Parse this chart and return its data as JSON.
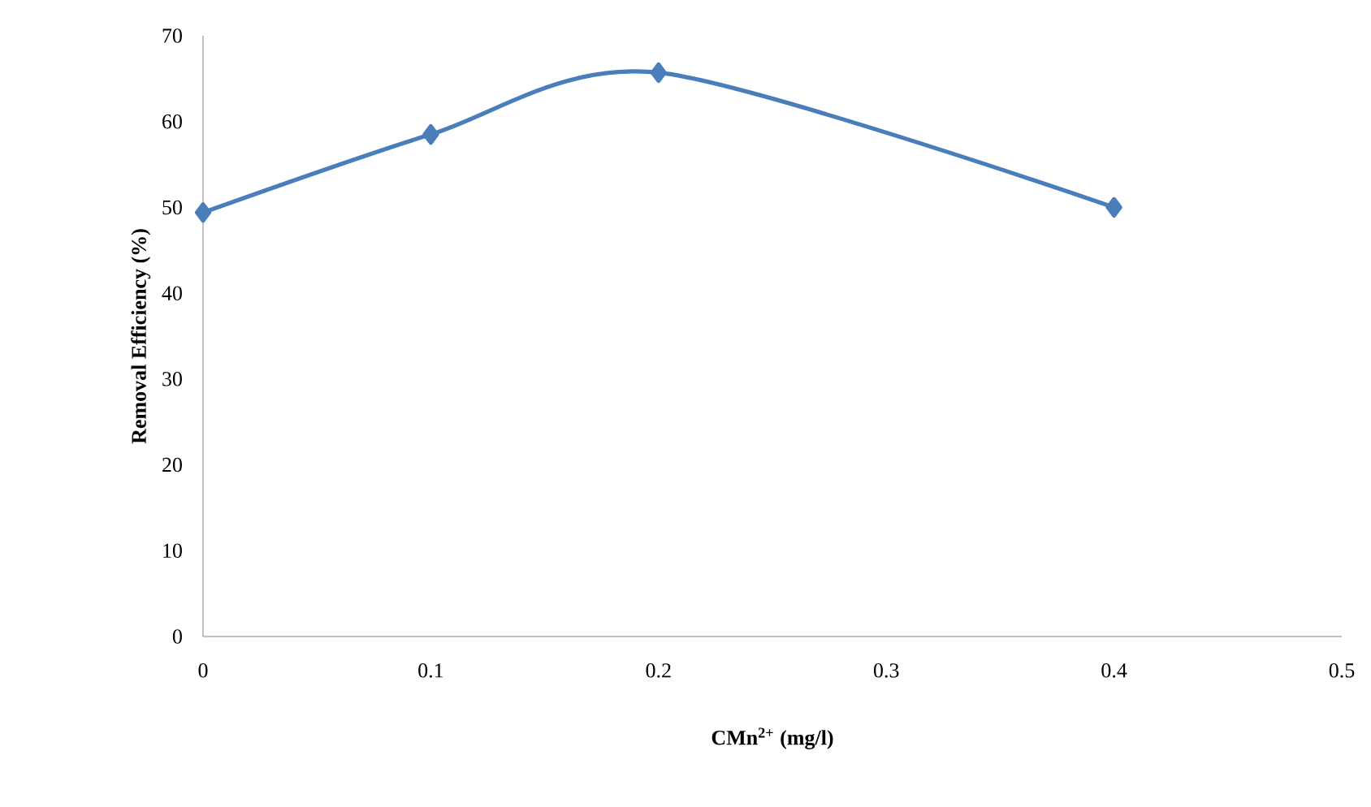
{
  "chart_data": {
    "type": "line",
    "xlabel": "CMn$^{2+}$ (mg/l)",
    "ylabel": "Removal Efficiency (%)",
    "x": [
      0,
      0.1,
      0.2,
      0.4
    ],
    "series": [
      {
        "color": "#4a7ebb",
        "values": [
          49.4,
          58.5,
          65.7,
          50.0
        ]
      }
    ],
    "xlim": [
      0,
      0.5
    ],
    "xticks": [
      0,
      0.1,
      0.2,
      0.3,
      0.4,
      0.5
    ],
    "ylim": [
      0,
      70
    ],
    "yticks": [
      0,
      10,
      20,
      30,
      40,
      50,
      60,
      70
    ],
    "grid": false,
    "marker": "diamond",
    "line_style": "solid"
  }
}
